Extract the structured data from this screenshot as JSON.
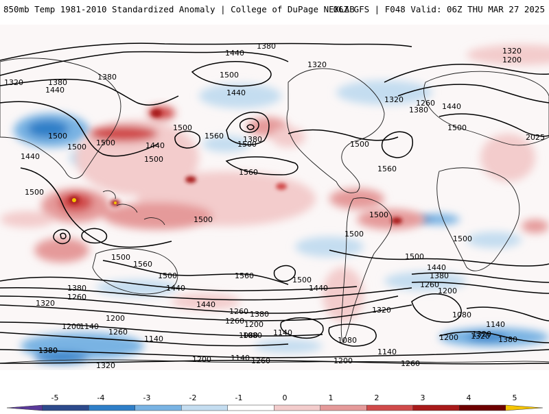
{
  "header": {
    "title_left": "850mb Temp 1981-2010 Standardized Anomaly | College of DuPage NEXLAB",
    "title_right": "06Z GFS | F048 Valid: 06Z THU MAR 27 2025"
  },
  "map": {
    "projection": "cylindrical global",
    "contour_labels": [
      {
        "text": "1380"
      },
      {
        "text": "1440"
      },
      {
        "text": "1500"
      },
      {
        "text": "1320"
      },
      {
        "text": "1200"
      },
      {
        "text": "1320"
      },
      {
        "text": "1380"
      },
      {
        "text": "1440"
      },
      {
        "text": "1380"
      },
      {
        "text": "1500"
      },
      {
        "text": "1500"
      },
      {
        "text": "1440"
      },
      {
        "text": "1500"
      },
      {
        "text": "1440"
      },
      {
        "text": "1500"
      },
      {
        "text": "1440"
      },
      {
        "text": "1320"
      },
      {
        "text": "1500"
      },
      {
        "text": "1380"
      },
      {
        "text": "1560"
      },
      {
        "text": "1500"
      },
      {
        "text": "1320"
      },
      {
        "text": "1260"
      },
      {
        "text": "1380"
      },
      {
        "text": "1440"
      },
      {
        "text": "1500"
      },
      {
        "text": "1560"
      },
      {
        "text": "1560"
      },
      {
        "text": "2025"
      },
      {
        "text": "1500"
      },
      {
        "text": "1500"
      },
      {
        "text": "1500"
      },
      {
        "text": "1500"
      },
      {
        "text": "1500"
      },
      {
        "text": "1500"
      },
      {
        "text": "1500"
      },
      {
        "text": "1560"
      },
      {
        "text": "1500"
      },
      {
        "text": "1440"
      },
      {
        "text": "1380"
      },
      {
        "text": "1260"
      },
      {
        "text": "1320"
      },
      {
        "text": "1440"
      },
      {
        "text": "1560"
      },
      {
        "text": "1500"
      },
      {
        "text": "1440"
      },
      {
        "text": "1500"
      },
      {
        "text": "1440"
      },
      {
        "text": "1380"
      },
      {
        "text": "1260"
      },
      {
        "text": "1200"
      },
      {
        "text": "1380"
      },
      {
        "text": "1320"
      },
      {
        "text": "1320"
      },
      {
        "text": "1260"
      },
      {
        "text": "1200"
      },
      {
        "text": "1140"
      },
      {
        "text": "1260"
      },
      {
        "text": "1140"
      },
      {
        "text": "1080"
      },
      {
        "text": "1200"
      },
      {
        "text": "1380"
      },
      {
        "text": "1260"
      },
      {
        "text": "1200"
      },
      {
        "text": "1080"
      },
      {
        "text": "1140"
      },
      {
        "text": "1080"
      },
      {
        "text": "1140"
      },
      {
        "text": "1080"
      },
      {
        "text": "1140"
      },
      {
        "text": "1200"
      },
      {
        "text": "1320"
      },
      {
        "text": "1380"
      },
      {
        "text": "1380"
      },
      {
        "text": "1320"
      },
      {
        "text": "1200"
      },
      {
        "text": "1140"
      },
      {
        "text": "1260"
      },
      {
        "text": "1200"
      },
      {
        "text": "1260"
      }
    ]
  },
  "colorbar": {
    "ticks": [
      "-5",
      "-4",
      "-3",
      "-2",
      "-1",
      "0",
      "1",
      "2",
      "3",
      "4",
      "5"
    ],
    "colors": [
      "#5a3a9a",
      "#2d4a8c",
      "#2f7fc8",
      "#79b3e3",
      "#c4ddf0",
      "#ffffff",
      "#f3cccc",
      "#e59a9a",
      "#d04a4a",
      "#a81a1a",
      "#6e0000",
      "#f5c400"
    ]
  }
}
